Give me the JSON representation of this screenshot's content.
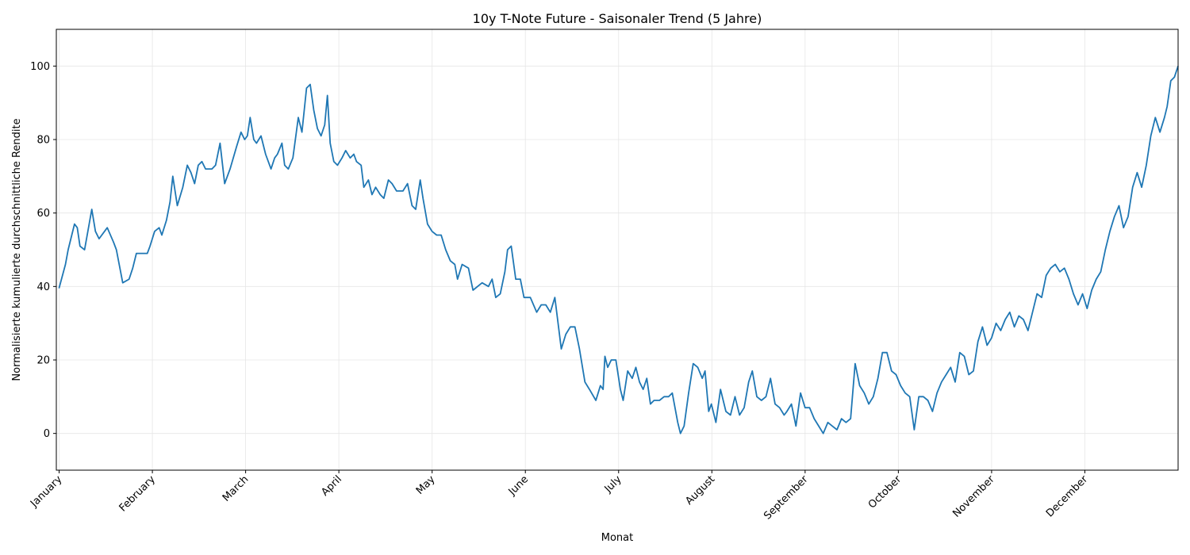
{
  "chart_data": {
    "type": "line",
    "title": "10y T-Note Future - Saisonaler Trend (5 Jahre)",
    "xlabel": "Monat",
    "ylabel": "Normalisierte kumulierte durchschnittliche Rendite",
    "ylim": [
      -10,
      110
    ],
    "xlim": [
      0.97,
      13.0
    ],
    "yticks": [
      0,
      20,
      40,
      60,
      80,
      100
    ],
    "xticks": [
      {
        "label": "January",
        "x": 1.0
      },
      {
        "label": "February",
        "x": 2.0
      },
      {
        "label": "March",
        "x": 3.0
      },
      {
        "label": "April",
        "x": 4.0
      },
      {
        "label": "May",
        "x": 5.0
      },
      {
        "label": "June",
        "x": 6.0
      },
      {
        "label": "July",
        "x": 7.0
      },
      {
        "label": "August",
        "x": 8.0
      },
      {
        "label": "September",
        "x": 9.0
      },
      {
        "label": "October",
        "x": 10.0
      },
      {
        "label": "November",
        "x": 11.0
      },
      {
        "label": "December",
        "x": 12.0
      }
    ],
    "grid": true,
    "series": [
      {
        "color": "#1f77b4",
        "points": [
          [
            1.0,
            39.5
          ],
          [
            1.07,
            46
          ],
          [
            1.1,
            50
          ],
          [
            1.17,
            57
          ],
          [
            1.2,
            56
          ],
          [
            1.23,
            51
          ],
          [
            1.28,
            50
          ],
          [
            1.36,
            61
          ],
          [
            1.4,
            55
          ],
          [
            1.44,
            53
          ],
          [
            1.53,
            56
          ],
          [
            1.6,
            52
          ],
          [
            1.63,
            50
          ],
          [
            1.7,
            41
          ],
          [
            1.77,
            42
          ],
          [
            1.81,
            45
          ],
          [
            1.85,
            49
          ],
          [
            1.9,
            49
          ],
          [
            1.97,
            49
          ],
          [
            2.0,
            51
          ],
          [
            2.05,
            55
          ],
          [
            2.1,
            56
          ],
          [
            2.13,
            54
          ],
          [
            2.18,
            58
          ],
          [
            2.22,
            63
          ],
          [
            2.25,
            70
          ],
          [
            2.3,
            62
          ],
          [
            2.36,
            67
          ],
          [
            2.41,
            73
          ],
          [
            2.45,
            71
          ],
          [
            2.49,
            68
          ],
          [
            2.53,
            73
          ],
          [
            2.57,
            74
          ],
          [
            2.61,
            72
          ],
          [
            2.68,
            72
          ],
          [
            2.72,
            73
          ],
          [
            2.77,
            79
          ],
          [
            2.82,
            68
          ],
          [
            2.88,
            72
          ],
          [
            2.95,
            78
          ],
          [
            3.0,
            82
          ],
          [
            3.04,
            80
          ],
          [
            3.07,
            81
          ],
          [
            3.1,
            86
          ],
          [
            3.14,
            80
          ],
          [
            3.17,
            79
          ],
          [
            3.22,
            81
          ],
          [
            3.27,
            76
          ],
          [
            3.33,
            72
          ],
          [
            3.37,
            75
          ],
          [
            3.4,
            76
          ],
          [
            3.45,
            79
          ],
          [
            3.48,
            73
          ],
          [
            3.52,
            72
          ],
          [
            3.57,
            75
          ],
          [
            3.63,
            86
          ],
          [
            3.67,
            82
          ],
          [
            3.72,
            94
          ],
          [
            3.76,
            95
          ],
          [
            3.8,
            88
          ],
          [
            3.84,
            83
          ],
          [
            3.88,
            81
          ],
          [
            3.92,
            84
          ],
          [
            3.95,
            92
          ],
          [
            3.98,
            79
          ],
          [
            4.02,
            74
          ],
          [
            4.06,
            73
          ],
          [
            4.11,
            75
          ],
          [
            4.15,
            77
          ],
          [
            4.2,
            75
          ],
          [
            4.24,
            76
          ],
          [
            4.27,
            74
          ],
          [
            4.32,
            73
          ],
          [
            4.35,
            67
          ],
          [
            4.4,
            69
          ],
          [
            4.44,
            65
          ],
          [
            4.48,
            67
          ],
          [
            4.53,
            65
          ],
          [
            4.57,
            64
          ],
          [
            4.62,
            69
          ],
          [
            4.66,
            68
          ],
          [
            4.71,
            66
          ],
          [
            4.78,
            66
          ],
          [
            4.83,
            68
          ],
          [
            4.88,
            62
          ],
          [
            4.92,
            61
          ],
          [
            4.97,
            69
          ],
          [
            5.0,
            64
          ],
          [
            5.05,
            57
          ],
          [
            5.1,
            55
          ],
          [
            5.15,
            54
          ],
          [
            5.2,
            54
          ],
          [
            5.25,
            50
          ],
          [
            5.3,
            47
          ],
          [
            5.35,
            46
          ],
          [
            5.38,
            42
          ],
          [
            5.43,
            46
          ],
          [
            5.5,
            45
          ],
          [
            5.55,
            39
          ],
          [
            5.6,
            40
          ],
          [
            5.65,
            41
          ],
          [
            5.72,
            40
          ],
          [
            5.76,
            42
          ],
          [
            5.8,
            37
          ],
          [
            5.85,
            38
          ],
          [
            5.9,
            44
          ],
          [
            5.93,
            50
          ],
          [
            5.97,
            51
          ],
          [
            6.02,
            42
          ],
          [
            6.07,
            42
          ],
          [
            6.11,
            37
          ],
          [
            6.18,
            37
          ],
          [
            6.25,
            33
          ],
          [
            6.3,
            35
          ],
          [
            6.35,
            35
          ],
          [
            6.4,
            33
          ],
          [
            6.45,
            37
          ],
          [
            6.52,
            23
          ],
          [
            6.57,
            27
          ],
          [
            6.62,
            29
          ],
          [
            6.67,
            29
          ],
          [
            6.72,
            23
          ],
          [
            6.78,
            14
          ],
          [
            6.83,
            12
          ],
          [
            6.9,
            9
          ],
          [
            6.95,
            13
          ],
          [
            6.98,
            12
          ],
          [
            7.0,
            21
          ],
          [
            7.03,
            18
          ],
          [
            7.07,
            20
          ],
          [
            7.12,
            20
          ],
          [
            7.17,
            12
          ],
          [
            7.2,
            9
          ],
          [
            7.25,
            17
          ],
          [
            7.3,
            15
          ],
          [
            7.34,
            18
          ],
          [
            7.38,
            14
          ],
          [
            7.42,
            12
          ],
          [
            7.46,
            15
          ],
          [
            7.5,
            8
          ],
          [
            7.54,
            9
          ],
          [
            7.6,
            9
          ],
          [
            7.65,
            10
          ],
          [
            7.7,
            10
          ],
          [
            7.74,
            11
          ],
          [
            7.8,
            3
          ],
          [
            7.83,
            0
          ],
          [
            7.87,
            2
          ],
          [
            7.92,
            11
          ],
          [
            7.97,
            19
          ],
          [
            8.02,
            18
          ],
          [
            8.07,
            15
          ],
          [
            8.1,
            17
          ],
          [
            8.14,
            6
          ],
          [
            8.17,
            8
          ],
          [
            8.22,
            3
          ],
          [
            8.27,
            12
          ],
          [
            8.33,
            6
          ],
          [
            8.38,
            5
          ],
          [
            8.43,
            10
          ],
          [
            8.48,
            5
          ],
          [
            8.53,
            7
          ],
          [
            8.58,
            14
          ],
          [
            8.62,
            17
          ],
          [
            8.67,
            10
          ],
          [
            8.72,
            9
          ],
          [
            8.77,
            10
          ],
          [
            8.82,
            15
          ],
          [
            8.87,
            8
          ],
          [
            8.92,
            7
          ],
          [
            8.97,
            5
          ],
          [
            9.0,
            6
          ],
          [
            9.05,
            8
          ],
          [
            9.1,
            2
          ],
          [
            9.15,
            11
          ],
          [
            9.2,
            7
          ],
          [
            9.25,
            7
          ],
          [
            9.3,
            4
          ],
          [
            9.35,
            2
          ],
          [
            9.4,
            0
          ],
          [
            9.45,
            3
          ],
          [
            9.5,
            2
          ],
          [
            9.55,
            1
          ],
          [
            9.6,
            4
          ],
          [
            9.65,
            3
          ],
          [
            9.7,
            4
          ],
          [
            9.75,
            19
          ],
          [
            9.8,
            13
          ],
          [
            9.85,
            11
          ],
          [
            9.9,
            8
          ],
          [
            9.95,
            10
          ],
          [
            10.0,
            15
          ],
          [
            10.05,
            22
          ],
          [
            10.1,
            22
          ],
          [
            10.15,
            17
          ],
          [
            10.2,
            16
          ],
          [
            10.25,
            13
          ],
          [
            10.3,
            11
          ],
          [
            10.35,
            10
          ],
          [
            10.4,
            1
          ],
          [
            10.45,
            10
          ],
          [
            10.5,
            10
          ],
          [
            10.55,
            9
          ],
          [
            10.6,
            6
          ],
          [
            10.65,
            11
          ],
          [
            10.7,
            14
          ],
          [
            10.75,
            16
          ],
          [
            10.8,
            18
          ],
          [
            10.85,
            14
          ],
          [
            10.9,
            22
          ],
          [
            10.95,
            21
          ],
          [
            11.0,
            16
          ],
          [
            11.05,
            17
          ],
          [
            11.1,
            25
          ],
          [
            11.15,
            29
          ],
          [
            11.2,
            24
          ],
          [
            11.25,
            26
          ],
          [
            11.3,
            30
          ],
          [
            11.35,
            28
          ],
          [
            11.4,
            31
          ],
          [
            11.45,
            33
          ],
          [
            11.5,
            29
          ],
          [
            11.55,
            32
          ],
          [
            11.6,
            31
          ],
          [
            11.65,
            28
          ],
          [
            11.7,
            33
          ],
          [
            11.75,
            38
          ],
          [
            11.8,
            37
          ],
          [
            11.85,
            43
          ],
          [
            11.9,
            45
          ],
          [
            11.95,
            46
          ],
          [
            12.0,
            44
          ],
          [
            12.05,
            45
          ],
          [
            12.1,
            42
          ],
          [
            12.15,
            38
          ],
          [
            12.2,
            35
          ],
          [
            12.25,
            38
          ],
          [
            12.3,
            34
          ],
          [
            12.35,
            39
          ],
          [
            12.4,
            42
          ],
          [
            12.45,
            44
          ],
          [
            12.5,
            50
          ],
          [
            12.55,
            55
          ],
          [
            12.6,
            59
          ],
          [
            12.65,
            62
          ],
          [
            12.7,
            56
          ],
          [
            12.75,
            59
          ],
          [
            12.8,
            67
          ],
          [
            12.85,
            71
          ],
          [
            12.9,
            67
          ],
          [
            12.95,
            73
          ],
          [
            13.0,
            81
          ],
          [
            13.05,
            86
          ],
          [
            13.1,
            82
          ],
          [
            13.15,
            86
          ],
          [
            13.18,
            89
          ],
          [
            13.22,
            96
          ],
          [
            13.26,
            97
          ],
          [
            13.3,
            100
          ]
        ]
      }
    ]
  }
}
